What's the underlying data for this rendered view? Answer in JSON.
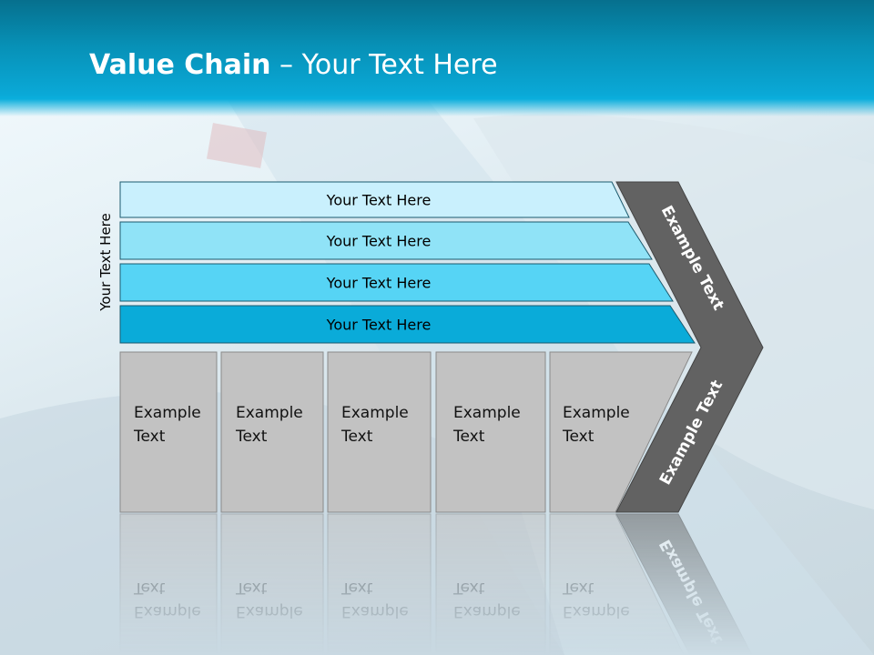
{
  "title": {
    "bold": "Value Chain",
    "rest": " – Your Text Here"
  },
  "side_label": "Your Text Here",
  "bars": [
    {
      "label": "Your Text Here",
      "color": "#c9f0fd"
    },
    {
      "label": "Your Text Here",
      "color": "#90e3f7"
    },
    {
      "label": "Your Text Here",
      "color": "#56d4f5"
    },
    {
      "label": "Your Text Here",
      "color": "#0aabd9"
    }
  ],
  "boxes": [
    {
      "line1": "Example",
      "line2": "Text"
    },
    {
      "line1": "Example",
      "line2": "Text"
    },
    {
      "line1": "Example",
      "line2": "Text"
    },
    {
      "line1": "Example",
      "line2": "Text"
    },
    {
      "line1": "Example",
      "line2": "Text"
    }
  ],
  "chevron": {
    "top_label": "Example Text",
    "bottom_label": "Example Text",
    "color": "#626262"
  }
}
